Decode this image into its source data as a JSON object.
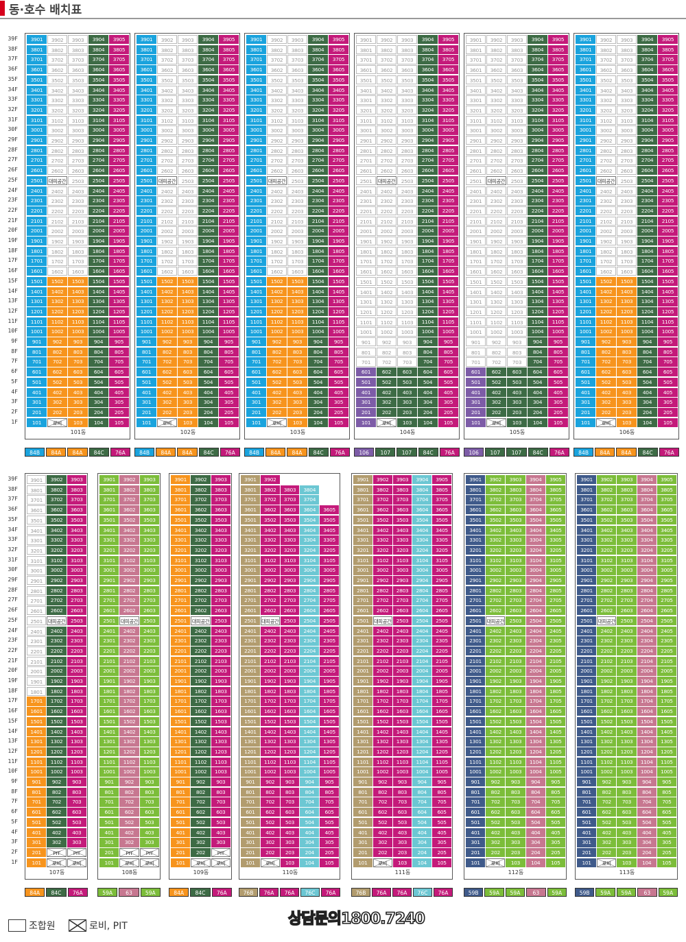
{
  "title": "동·호수 배치표",
  "contact": "상담문의1800.7240",
  "legend": {
    "member": "조합원",
    "lobby_pit": "로비, PIT"
  },
  "labels": {
    "refuge": "대피공간",
    "lobby": "로비",
    "pit": "PIT"
  },
  "colors": {
    "blue": "#1aa3dd",
    "orange": "#f7941d",
    "green": "#3d6b45",
    "magenta": "#c41a7a",
    "purple": "#7d5ca7",
    "lime": "#7cbd3a",
    "pink": "#c77790",
    "olive": "#b29c6e",
    "teal": "#6cc7d3",
    "navy": "#3f5a8a",
    "title_red": "#d6001c"
  },
  "top_row": [
    {
      "name": "101동",
      "prefix": "dong101",
      "types": [
        [
          "84B",
          "blue"
        ],
        [
          "84A",
          "orange"
        ],
        [
          "84A",
          "orange"
        ],
        [
          "84C",
          "green"
        ],
        [
          "76A",
          "magenta"
        ]
      ]
    },
    {
      "name": "102동",
      "prefix": "dong102",
      "types": [
        [
          "84B",
          "blue"
        ],
        [
          "84A",
          "orange"
        ],
        [
          "84A",
          "orange"
        ],
        [
          "84C",
          "green"
        ],
        [
          "76A",
          "magenta"
        ]
      ]
    },
    {
      "name": "103동",
      "prefix": "dong103",
      "types": [
        [
          "84B",
          "blue"
        ],
        [
          "84A",
          "orange"
        ],
        [
          "84A",
          "orange"
        ],
        [
          "84C",
          "green"
        ],
        [
          "76A",
          "magenta"
        ]
      ]
    },
    {
      "name": "104동",
      "prefix": "dong104",
      "types": [
        [
          "106",
          "purple"
        ],
        [
          "107",
          "green"
        ],
        [
          "107",
          "green"
        ],
        [
          "84C",
          "green"
        ],
        [
          "76A",
          "magenta"
        ]
      ]
    },
    {
      "name": "105동",
      "prefix": "dong105",
      "types": [
        [
          "106",
          "purple"
        ],
        [
          "107",
          "green"
        ],
        [
          "107",
          "green"
        ],
        [
          "84C",
          "green"
        ],
        [
          "76A",
          "magenta"
        ]
      ]
    },
    {
      "name": "106동",
      "prefix": "dong106",
      "types": [
        [
          "84B",
          "blue"
        ],
        [
          "84A",
          "orange"
        ],
        [
          "84A",
          "orange"
        ],
        [
          "84C",
          "green"
        ],
        [
          "76A",
          "magenta"
        ]
      ]
    }
  ],
  "bottom_row": [
    {
      "name": "107동",
      "prefix": "dong107",
      "types": [
        [
          "84A",
          "orange"
        ],
        [
          "84C",
          "green"
        ],
        [
          "76A",
          "magenta"
        ]
      ]
    },
    {
      "name": "108동",
      "prefix": "dong108",
      "types": [
        [
          "59A",
          "lime"
        ],
        [
          "63",
          "pink"
        ],
        [
          "59A",
          "lime"
        ]
      ]
    },
    {
      "name": "109동",
      "prefix": "dong109",
      "types": [
        [
          "84A",
          "orange"
        ],
        [
          "84C",
          "green"
        ],
        [
          "76A",
          "magenta"
        ]
      ]
    },
    {
      "name": "110동",
      "prefix": "dong110",
      "types": [
        [
          "76B",
          "olive"
        ],
        [
          "76A",
          "magenta"
        ],
        [
          "76A",
          "magenta"
        ],
        [
          "76C",
          "teal"
        ],
        [
          "76A",
          "magenta"
        ]
      ]
    },
    {
      "name": "111동",
      "prefix": "dong111",
      "types": [
        [
          "76B",
          "olive"
        ],
        [
          "76A",
          "magenta"
        ],
        [
          "76A",
          "magenta"
        ],
        [
          "76C",
          "teal"
        ],
        [
          "76A",
          "magenta"
        ]
      ]
    },
    {
      "name": "112동",
      "prefix": "dong112",
      "types": [
        [
          "59B",
          "navy"
        ],
        [
          "59A",
          "lime"
        ],
        [
          "59A",
          "lime"
        ],
        [
          "63",
          "pink"
        ],
        [
          "59A",
          "lime"
        ]
      ]
    },
    {
      "name": "113동",
      "prefix": "dong113",
      "types": [
        [
          "59B",
          "navy"
        ],
        [
          "59A",
          "lime"
        ],
        [
          "59A",
          "lime"
        ],
        [
          "63",
          "pink"
        ],
        [
          "59A",
          "lime"
        ]
      ]
    }
  ],
  "floor_labels": [
    "39F",
    "38F",
    "37F",
    "36F",
    "35F",
    "34F",
    "33F",
    "32F",
    "31F",
    "30F",
    "29F",
    "28F",
    "27F",
    "26F",
    "25F",
    "24F",
    "23F",
    "22F",
    "21F",
    "20F",
    "19F",
    "18F",
    "17F",
    "16F",
    "15F",
    "14F",
    "13F",
    "12F",
    "11F",
    "10F",
    "9F",
    "8F",
    "7F",
    "6F",
    "5F",
    "4F",
    "3F",
    "2F",
    "1F"
  ]
}
